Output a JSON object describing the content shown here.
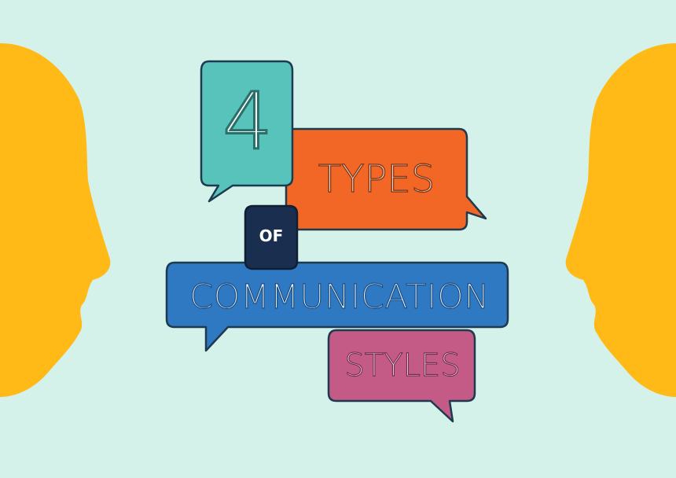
{
  "graphic": {
    "background_color": "#d4f1ea",
    "line_1": "4",
    "line_2": "TYPES",
    "line_3": "OF",
    "line_4": "COMMUNICATION",
    "line_5": "STYLES"
  },
  "colors": {
    "face": "#ffba17",
    "bubble_teal": "#58c3bb",
    "bubble_orange": "#f26725",
    "bubble_navy": "#1a2f4f",
    "bubble_blue": "#2f78c2",
    "bubble_pink": "#c35b86",
    "bubble_outline": "#1d3a4f"
  },
  "icons": {
    "left_head": "head-profile-facing-right",
    "right_head": "head-profile-facing-left"
  }
}
